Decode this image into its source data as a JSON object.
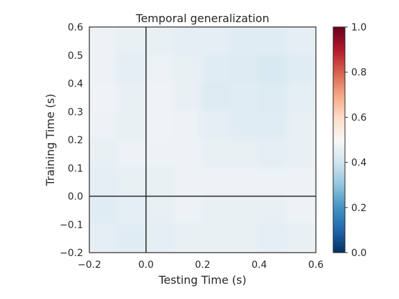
{
  "chart_data": {
    "type": "heatmap",
    "title": "Temporal generalization",
    "xlabel": "Testing Time (s)",
    "ylabel": "Training Time (s)",
    "xlim": [
      -0.2,
      0.6
    ],
    "ylim": [
      -0.2,
      0.6
    ],
    "x_ticks": [
      "−0.2",
      "0.0",
      "0.2",
      "0.4",
      "0.6"
    ],
    "x_tick_values": [
      -0.2,
      0.0,
      0.2,
      0.4,
      0.6
    ],
    "y_ticks": [
      "−0.2",
      "−0.1",
      "0.0",
      "0.1",
      "0.2",
      "0.3",
      "0.4",
      "0.5",
      "0.6"
    ],
    "y_tick_values": [
      -0.2,
      -0.1,
      0.0,
      0.1,
      0.2,
      0.3,
      0.4,
      0.5,
      0.6
    ],
    "colormap": "RdBu_r",
    "color_range": [
      0.0,
      1.0
    ],
    "colorbar_ticks": [
      "0.0",
      "0.2",
      "0.4",
      "0.6",
      "0.8",
      "1.0"
    ],
    "colorbar_tick_values": [
      0.0,
      0.2,
      0.4,
      0.6,
      0.8,
      1.0
    ],
    "reference_lines": {
      "x": 0.0,
      "y": 0.0
    },
    "grid": false,
    "x_centers": [
      -0.15,
      -0.05,
      0.05,
      0.15,
      0.25,
      0.35,
      0.45,
      0.55
    ],
    "y_centers": [
      0.55,
      0.45,
      0.35,
      0.25,
      0.15,
      0.05,
      -0.05,
      -0.15
    ],
    "values": [
      [
        0.47,
        0.46,
        0.46,
        0.45,
        0.45,
        0.44,
        0.44,
        0.45
      ],
      [
        0.47,
        0.45,
        0.47,
        0.46,
        0.44,
        0.43,
        0.42,
        0.44
      ],
      [
        0.48,
        0.46,
        0.48,
        0.46,
        0.43,
        0.44,
        0.43,
        0.45
      ],
      [
        0.47,
        0.46,
        0.48,
        0.47,
        0.45,
        0.44,
        0.44,
        0.46
      ],
      [
        0.46,
        0.47,
        0.47,
        0.47,
        0.46,
        0.46,
        0.45,
        0.46
      ],
      [
        0.45,
        0.46,
        0.46,
        0.47,
        0.47,
        0.47,
        0.47,
        0.47
      ],
      [
        0.44,
        0.45,
        0.46,
        0.47,
        0.46,
        0.46,
        0.46,
        0.47
      ],
      [
        0.45,
        0.44,
        0.45,
        0.46,
        0.46,
        0.46,
        0.45,
        0.46
      ]
    ]
  }
}
